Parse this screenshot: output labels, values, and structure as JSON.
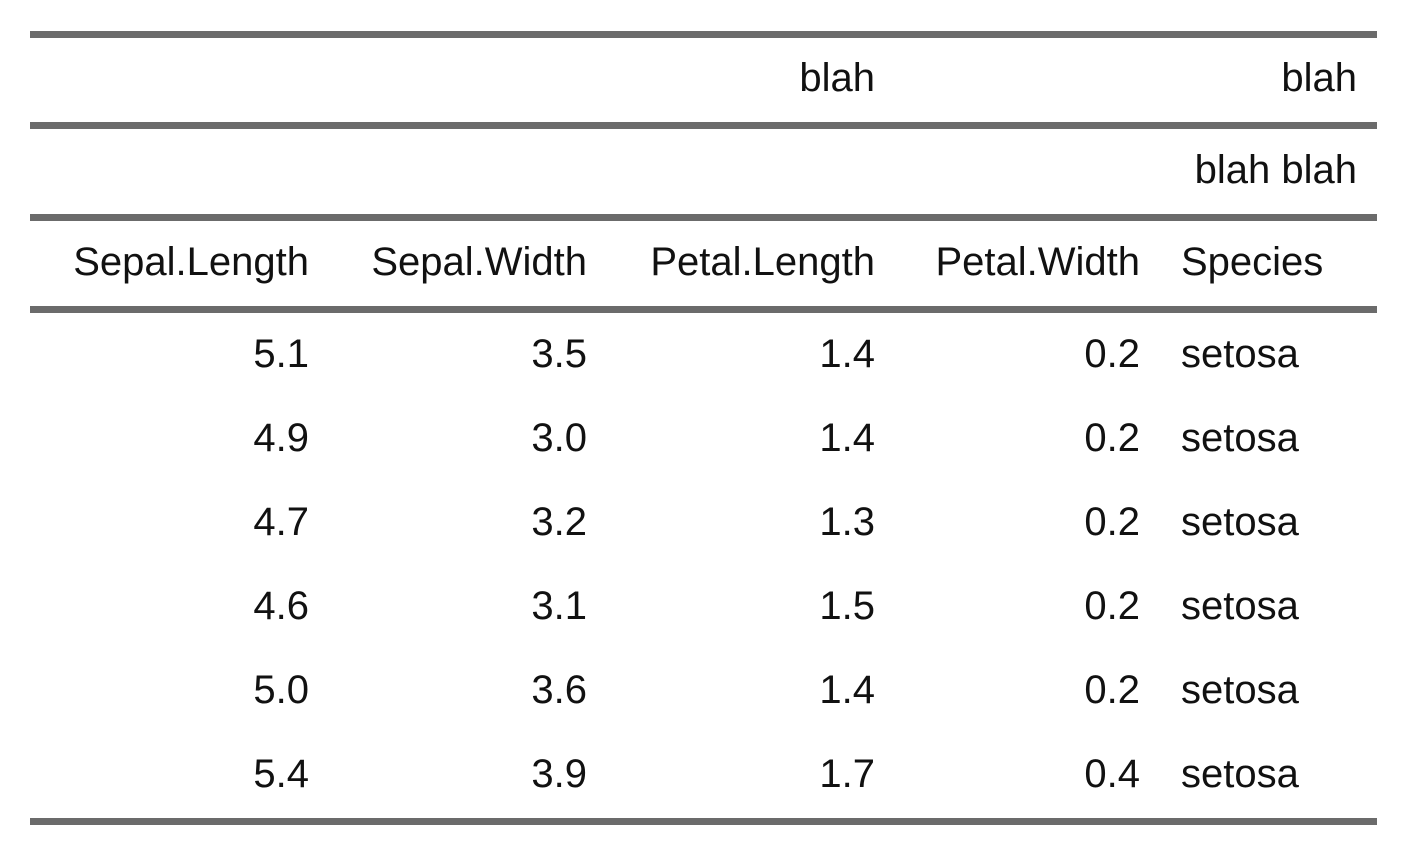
{
  "table": {
    "header_row_1": [
      "",
      "",
      "blah",
      "",
      "blah"
    ],
    "header_row_2": [
      "",
      "",
      "",
      "",
      "blah blah"
    ],
    "columns": [
      "Sepal.Length",
      "Sepal.Width",
      "Petal.Length",
      "Petal.Width",
      "Species"
    ],
    "rows": [
      [
        "5.1",
        "3.5",
        "1.4",
        "0.2",
        "setosa"
      ],
      [
        "4.9",
        "3.0",
        "1.4",
        "0.2",
        "setosa"
      ],
      [
        "4.7",
        "3.2",
        "1.3",
        "0.2",
        "setosa"
      ],
      [
        "4.6",
        "3.1",
        "1.5",
        "0.2",
        "setosa"
      ],
      [
        "5.0",
        "3.6",
        "1.4",
        "0.2",
        "setosa"
      ],
      [
        "5.4",
        "3.9",
        "1.7",
        "0.4",
        "setosa"
      ]
    ],
    "colors": {
      "rule": "#6b6b6b",
      "text": "#111111",
      "background": "#ffffff"
    }
  }
}
